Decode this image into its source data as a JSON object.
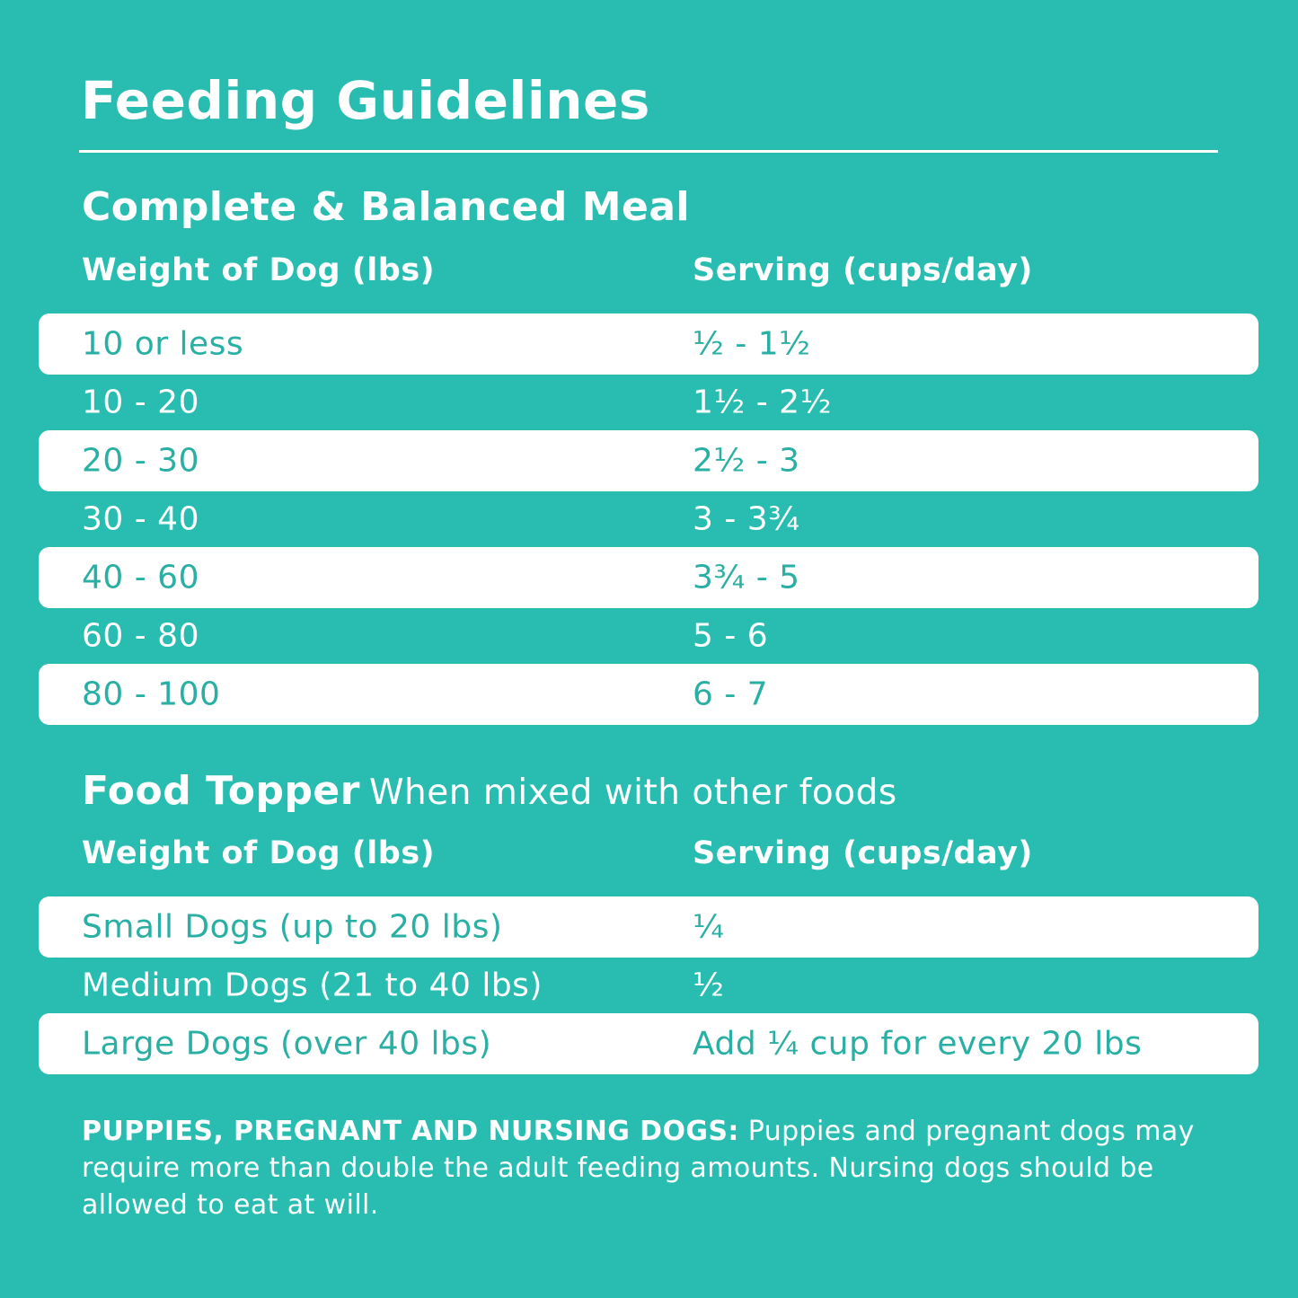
{
  "title": "Feeding Guidelines",
  "meal": {
    "heading": "Complete & Balanced Meal",
    "col1": "Weight of Dog (lbs)",
    "col2": "Serving (cups/day)",
    "rows": [
      {
        "weight": "10 or less",
        "serving": "½ - 1½"
      },
      {
        "weight": "10 - 20",
        "serving": "1½ - 2½"
      },
      {
        "weight": "20 - 30",
        "serving": "2½ - 3"
      },
      {
        "weight": "30 - 40",
        "serving": "3 - 3¾"
      },
      {
        "weight": "40 - 60",
        "serving": "3¾ - 5"
      },
      {
        "weight": "60 - 80",
        "serving": "5 - 6"
      },
      {
        "weight": "80 - 100",
        "serving": "6 - 7"
      }
    ]
  },
  "topper": {
    "heading": "Food Topper",
    "note": "When mixed with other foods",
    "col1": "Weight of Dog (lbs)",
    "col2": "Serving (cups/day)",
    "rows": [
      {
        "weight": "Small Dogs (up to 20 lbs)",
        "serving": "¼"
      },
      {
        "weight": "Medium Dogs (21 to 40 lbs)",
        "serving": "½"
      },
      {
        "weight": "Large Dogs (over 40 lbs)",
        "serving": "Add ¼ cup for every 20 lbs"
      }
    ]
  },
  "footnote": {
    "label": "PUPPIES, PREGNANT AND NURSING DOGS:",
    "text": "Puppies and pregnant dogs may require more than double the adult feeding amounts. Nursing dogs should be allowed to eat at will."
  },
  "colors": {
    "background": "#29bdb1",
    "row_highlight": "#ffffff",
    "row_text": "#29afa3"
  }
}
